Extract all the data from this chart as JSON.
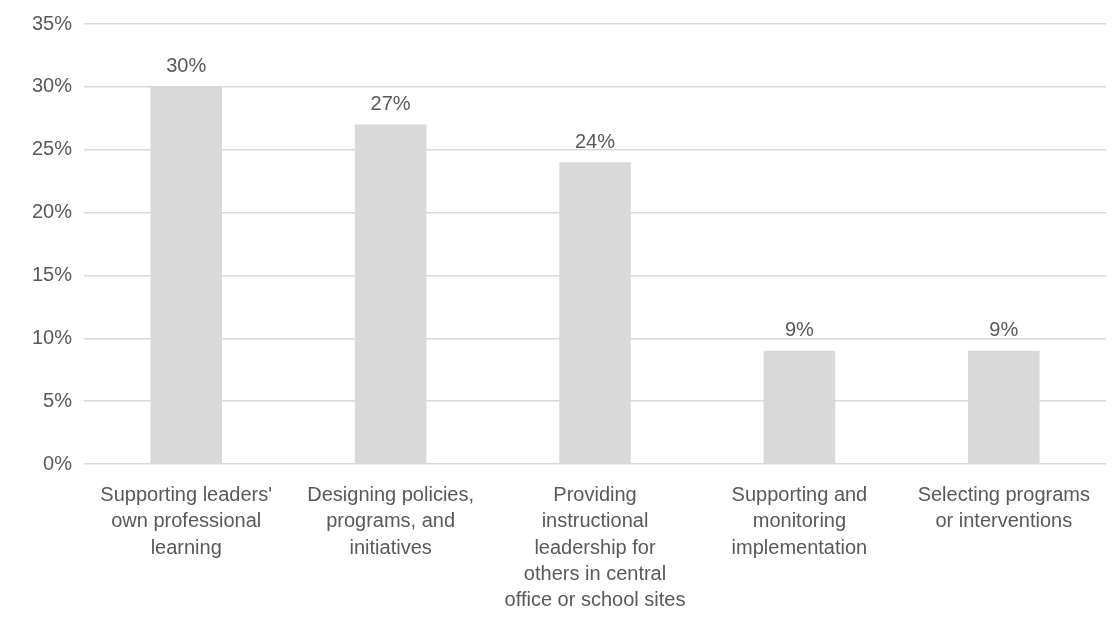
{
  "chart_data": {
    "type": "bar",
    "categories": [
      "Supporting leaders' own professional learning",
      "Designing policies, programs, and initiatives",
      "Providing instructional leadership for others in central office or school sites",
      "Supporting and monitoring implementation",
      "Selecting programs or interventions"
    ],
    "values": [
      30,
      27,
      24,
      9,
      9
    ],
    "color": "#d9d9d9",
    "value_labels": [
      "30%",
      "27%",
      "24%",
      "9%",
      "9%"
    ],
    "ylim": [
      0,
      35
    ],
    "yticks": [
      {
        "value": 0,
        "label": "0%"
      },
      {
        "value": 5,
        "label": "5%"
      },
      {
        "value": 10,
        "label": "10%"
      },
      {
        "value": 15,
        "label": "15%"
      },
      {
        "value": 20,
        "label": "20%"
      },
      {
        "value": 25,
        "label": "25%"
      },
      {
        "value": 30,
        "label": "30%"
      },
      {
        "value": 35,
        "label": "35%"
      }
    ],
    "grid": "y",
    "legend": false
  }
}
